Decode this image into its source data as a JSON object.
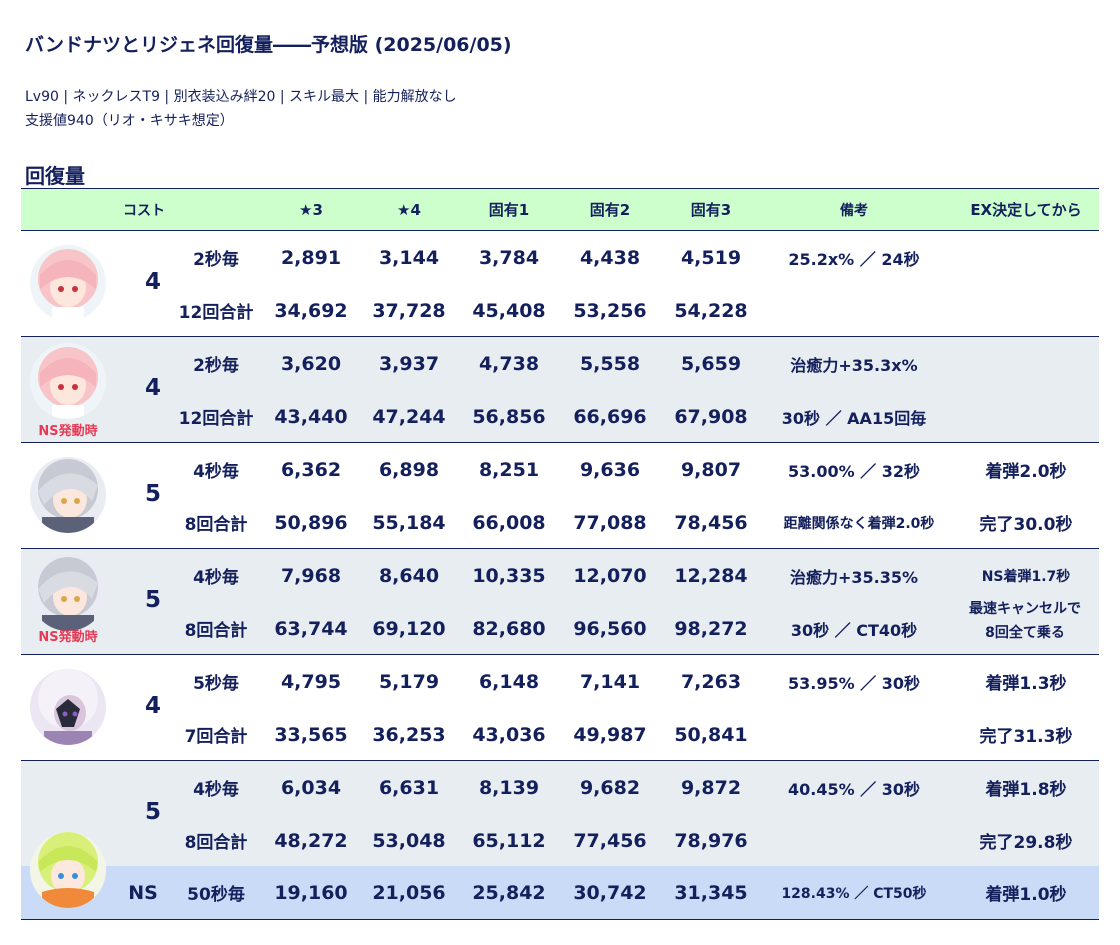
{
  "title": "バンドナツとリジェネ回復量――予想版 (2025/06/05)",
  "subtitle_line1": "Lv90 | ネックレスT9 | 別衣装込み絆20 | スキル最大 | 能力解放なし",
  "subtitle_line2": "支援値940（リオ・キサキ想定）",
  "section_title": "回復量",
  "columns": {
    "cost": "コスト",
    "star3": "★3",
    "star4": "★4",
    "u1": "固有1",
    "u2": "固有2",
    "u3": "固有3",
    "note": "備考",
    "ex": "EX決定してから"
  },
  "ns_badge": "NS発動時",
  "rows": [
    {
      "cost": "4",
      "r1": {
        "label": "2秒毎",
        "v": [
          "2,891",
          "3,144",
          "3,784",
          "4,438",
          "4,519"
        ],
        "note": "25.2x% ／ 24秒",
        "ex": ""
      },
      "r2": {
        "label": "12回合計",
        "v": [
          "34,692",
          "37,728",
          "45,408",
          "53,256",
          "54,228"
        ],
        "note": "",
        "ex": ""
      }
    },
    {
      "cost": "4",
      "r1": {
        "label": "2秒毎",
        "v": [
          "3,620",
          "3,937",
          "4,738",
          "5,558",
          "5,659"
        ],
        "note": "治癒力+35.3x%",
        "ex": ""
      },
      "r2": {
        "label": "12回合計",
        "v": [
          "43,440",
          "47,244",
          "56,856",
          "66,696",
          "67,908"
        ],
        "note": "30秒 ／ AA15回毎",
        "ex": ""
      }
    },
    {
      "cost": "5",
      "r1": {
        "label": "4秒毎",
        "v": [
          "6,362",
          "6,898",
          "8,251",
          "9,636",
          "9,807"
        ],
        "note": "53.00% ／ 32秒",
        "ex": "着弾2.0秒"
      },
      "r2": {
        "label": "8回合計",
        "v": [
          "50,896",
          "55,184",
          "66,008",
          "77,088",
          "78,456"
        ],
        "note": "距離関係なく着弾2.0秒",
        "ex": "完了30.0秒"
      }
    },
    {
      "cost": "5",
      "r1": {
        "label": "4秒毎",
        "v": [
          "7,968",
          "8,640",
          "10,335",
          "12,070",
          "12,284"
        ],
        "note": "治癒力+35.35%",
        "ex": "NS着弾1.7秒"
      },
      "r2": {
        "label": "8回合計",
        "v": [
          "63,744",
          "69,120",
          "82,680",
          "96,560",
          "98,272"
        ],
        "note": "30秒 ／ CT40秒",
        "ex_line1": "最速キャンセルで",
        "ex_line2": "8回全て乗る"
      }
    },
    {
      "cost": "4",
      "r1": {
        "label": "5秒毎",
        "v": [
          "4,795",
          "5,179",
          "6,148",
          "7,141",
          "7,263"
        ],
        "note": "53.95% ／ 30秒",
        "ex": "着弾1.3秒"
      },
      "r2": {
        "label": "7回合計",
        "v": [
          "33,565",
          "36,253",
          "43,036",
          "49,987",
          "50,841"
        ],
        "note": "",
        "ex": "完了31.3秒"
      }
    },
    {
      "cost": "5",
      "r1": {
        "label": "4秒毎",
        "v": [
          "6,034",
          "6,631",
          "8,139",
          "9,682",
          "9,872"
        ],
        "note": "40.45% ／ 30秒",
        "ex": "着弾1.8秒"
      },
      "r2": {
        "label": "8回合計",
        "v": [
          "48,272",
          "53,048",
          "65,112",
          "77,456",
          "78,976"
        ],
        "note": "",
        "ex": "完了29.8秒"
      },
      "ns": {
        "cost": "NS",
        "label": "50秒毎",
        "v": [
          "19,160",
          "21,056",
          "25,842",
          "30,742",
          "31,345"
        ],
        "note": "128.43% ／ CT50秒",
        "ex": "着弾1.0秒"
      }
    }
  ]
}
